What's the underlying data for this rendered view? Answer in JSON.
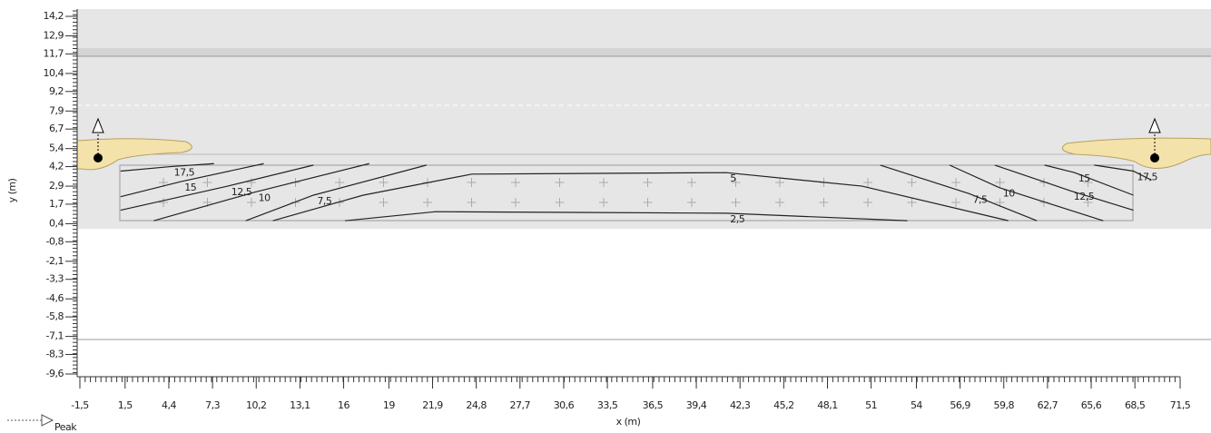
{
  "chart_data": {
    "type": "contour",
    "x_label": "x (m)",
    "y_label": "y (m)",
    "legend": [
      "Peak"
    ],
    "xlim": [
      -1.5,
      71.5
    ],
    "ylim": [
      -9.6,
      14.2
    ],
    "xticks": [
      {
        "value": -1.5,
        "label": "-1,5"
      },
      {
        "value": 1.5,
        "label": "1,5"
      },
      {
        "value": 4.4,
        "label": "4,4"
      },
      {
        "value": 7.3,
        "label": "7,3"
      },
      {
        "value": 10.2,
        "label": "10,2"
      },
      {
        "value": 13.1,
        "label": "13,1"
      },
      16,
      19,
      {
        "value": 21.9,
        "label": "21,9"
      },
      {
        "value": 24.8,
        "label": "24,8"
      },
      {
        "value": 27.7,
        "label": "27,7"
      },
      {
        "value": 30.6,
        "label": "30,6"
      },
      {
        "value": 33.5,
        "label": "33,5"
      },
      {
        "value": 36.5,
        "label": "36,5"
      },
      {
        "value": 39.4,
        "label": "39,4"
      },
      {
        "value": 42.3,
        "label": "42,3"
      },
      {
        "value": 45.2,
        "label": "45,2"
      },
      {
        "value": 48.1,
        "label": "48,1"
      },
      51,
      54,
      {
        "value": 56.9,
        "label": "56,9"
      },
      {
        "value": 59.8,
        "label": "59,8"
      },
      {
        "value": 62.7,
        "label": "62,7"
      },
      {
        "value": 65.6,
        "label": "65,6"
      },
      {
        "value": 68.5,
        "label": "68,5"
      },
      {
        "value": 71.5,
        "label": "71,5"
      }
    ],
    "yticks": [
      {
        "value": 14.2,
        "label": "14,2"
      },
      {
        "value": 12.9,
        "label": "12,9"
      },
      {
        "value": 11.7,
        "label": "11,7"
      },
      {
        "value": 10.4,
        "label": "10,4"
      },
      {
        "value": 9.2,
        "label": "9,2"
      },
      {
        "value": 7.9,
        "label": "7,9"
      },
      {
        "value": 6.7,
        "label": "6,7"
      },
      {
        "value": 5.4,
        "label": "5,4"
      },
      {
        "value": 4.2,
        "label": "4,2"
      },
      {
        "value": 2.9,
        "label": "2,9"
      },
      {
        "value": 1.7,
        "label": "1,7"
      },
      {
        "value": 0.4,
        "label": "0,4"
      },
      {
        "value": -0.8,
        "label": "-0,8"
      },
      {
        "value": -2.1,
        "label": "-2,1"
      },
      {
        "value": -3.3,
        "label": "-3,3"
      },
      {
        "value": -4.6,
        "label": "-4,6"
      },
      {
        "value": -5.8,
        "label": "-5,8"
      },
      {
        "value": -7.1,
        "label": "-7,1"
      },
      {
        "value": -8.3,
        "label": "-8,3"
      },
      {
        "value": -9.6,
        "label": "-9,6"
      }
    ],
    "contours": [
      {
        "level": 17.5,
        "label": "17,5",
        "x": [
          1.2,
          4.5,
          7.4
        ],
        "y": [
          3.9,
          4.2,
          4.4
        ]
      },
      {
        "level": 15,
        "label": "15",
        "x": [
          1.2,
          5.2,
          10.7
        ],
        "y": [
          2.2,
          3.2,
          4.4
        ]
      },
      {
        "level": 12.5,
        "label": "12,5",
        "x": [
          1.2,
          8.3,
          14.0
        ],
        "y": [
          1.3,
          2.9,
          4.3
        ]
      },
      {
        "level": 10,
        "label": "10",
        "x": [
          3.4,
          10.1,
          17.7
        ],
        "y": [
          0.6,
          2.5,
          4.4
        ]
      },
      {
        "level": 7.5,
        "label": "7,5",
        "x": [
          9.5,
          14.0,
          21.5
        ],
        "y": [
          0.6,
          2.3,
          4.3
        ]
      },
      {
        "level": 5,
        "label": "5",
        "x": [
          11.3,
          17.3,
          24.5,
          41.4,
          50.4,
          60.1
        ],
        "y": [
          0.6,
          2.3,
          3.7,
          3.8,
          2.9,
          0.6
        ]
      },
      {
        "level": 2.5,
        "label": "2,5",
        "x": [
          16.1,
          22.1,
          41.4,
          53.4
        ],
        "y": [
          0.6,
          1.2,
          1.1,
          0.6
        ]
      },
      {
        "level": 7.5,
        "label": "7,5",
        "x": [
          51.6,
          57.5,
          62.0
        ],
        "y": [
          4.3,
          2.4,
          0.6
        ]
      },
      {
        "level": 10,
        "label": "10",
        "x": [
          56.2,
          59.5,
          66.4
        ],
        "y": [
          4.3,
          2.8,
          0.6
        ]
      },
      {
        "level": 12.5,
        "label": "12,5",
        "x": [
          59.2,
          64.2,
          68.4
        ],
        "y": [
          4.3,
          2.6,
          1.3
        ]
      },
      {
        "level": 15,
        "label": "15",
        "x": [
          62.5,
          64.5,
          68.4
        ],
        "y": [
          4.3,
          3.8,
          2.3
        ]
      },
      {
        "level": 17.5,
        "label": "17,5",
        "x": [
          65.8,
          68.4,
          69.6
        ],
        "y": [
          4.3,
          3.9,
          3.3
        ]
      }
    ]
  }
}
